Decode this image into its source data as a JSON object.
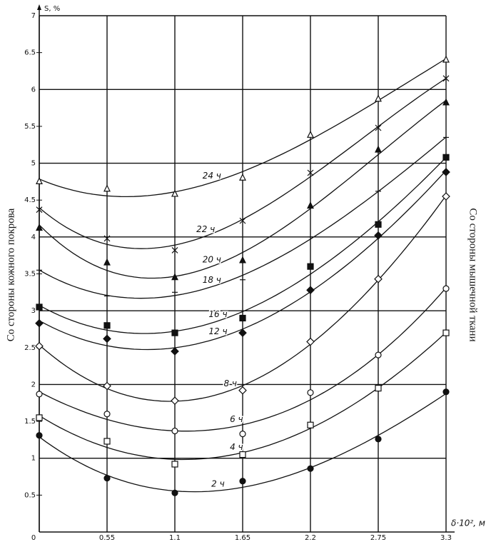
{
  "chart_data": {
    "type": "scatter",
    "y_label": "S, %",
    "x_label": "δ·10², м",
    "left_label": "Со стороны кожного покрова",
    "right_label": "Со стороны мышечной ткани",
    "x": [
      0,
      0.55,
      1.1,
      1.65,
      2.2,
      2.75,
      3.3
    ],
    "xlim": [
      0,
      3.3
    ],
    "xticks": [
      0,
      0.55,
      1.1,
      1.65,
      2.2,
      2.75,
      3.3
    ],
    "ylim": [
      0,
      7
    ],
    "yticks": [
      0.5,
      1,
      1.5,
      2,
      2.5,
      3,
      3.5,
      4,
      4.5,
      5,
      5.5,
      6,
      6.5,
      7
    ],
    "grid": true,
    "series": [
      {
        "name": "2 ч",
        "marker": "filled-circle",
        "color": "#111",
        "values": [
          1.31,
          0.73,
          0.53,
          0.69,
          0.86,
          1.26,
          1.9
        ]
      },
      {
        "name": "4 ч",
        "marker": "open-square",
        "color": "#111",
        "values": [
          1.55,
          1.23,
          0.92,
          1.05,
          1.45,
          1.95,
          2.7
        ]
      },
      {
        "name": "6 ч",
        "marker": "open-circle",
        "color": "#111",
        "values": [
          1.87,
          1.6,
          1.37,
          1.33,
          1.89,
          2.4,
          3.3
        ]
      },
      {
        "name": "8 ч",
        "marker": "open-diamond",
        "color": "#111",
        "values": [
          2.52,
          1.98,
          1.78,
          1.92,
          2.58,
          3.43,
          4.55
        ]
      },
      {
        "name": "12 ч",
        "marker": "filled-diamond",
        "color": "#111",
        "values": [
          2.83,
          2.62,
          2.45,
          2.7,
          3.28,
          4.02,
          4.88
        ]
      },
      {
        "name": "16 ч",
        "marker": "filled-square",
        "color": "#111",
        "values": [
          3.05,
          2.8,
          2.7,
          2.9,
          3.6,
          4.17,
          5.08
        ]
      },
      {
        "name": "18 ч",
        "marker": "dash",
        "color": "#111",
        "values": [
          3.55,
          3.2,
          3.25,
          3.42,
          4.0,
          4.62,
          5.35
        ]
      },
      {
        "name": "20 ч",
        "marker": "filled-triangle",
        "color": "#111",
        "values": [
          4.12,
          3.65,
          3.45,
          3.68,
          4.42,
          5.18,
          5.82
        ]
      },
      {
        "name": "22 ч",
        "marker": "cross",
        "color": "#111",
        "values": [
          4.37,
          3.98,
          3.82,
          4.22,
          4.87,
          5.48,
          6.15
        ]
      },
      {
        "name": "24 ч",
        "marker": "open-triangle",
        "color": "#111",
        "values": [
          4.75,
          4.65,
          4.58,
          4.8,
          5.38,
          5.87,
          6.4
        ]
      }
    ]
  }
}
